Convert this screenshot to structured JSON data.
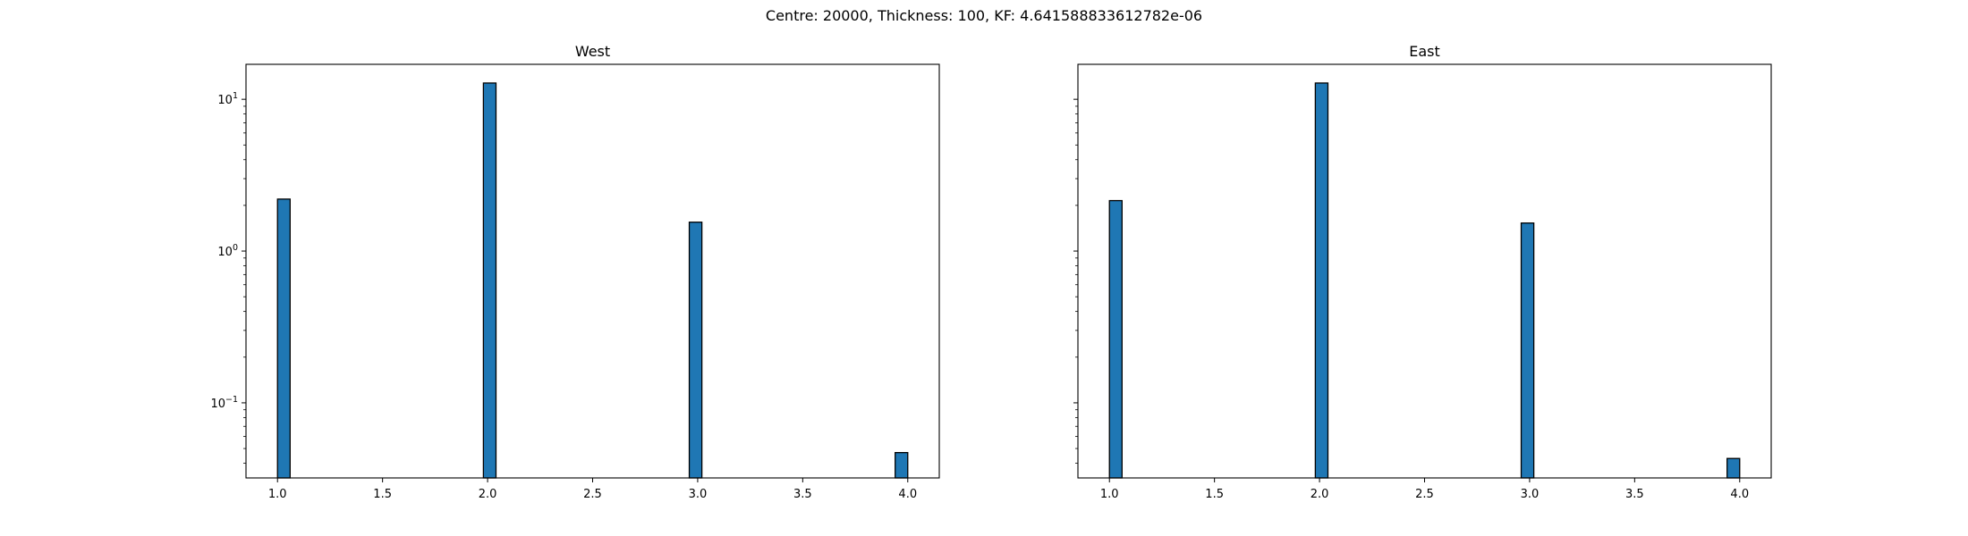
{
  "figure": {
    "suptitle": "Centre: 20000, Thickness: 100, KF: 4.641588833612782e-06"
  },
  "chart_data": [
    {
      "type": "bar",
      "title": "West",
      "xlabel": "",
      "ylabel": "",
      "yscale": "log",
      "xlim": [
        0.85,
        4.15
      ],
      "ylim": [
        0.032,
        17
      ],
      "bar_width": 0.06,
      "x_ticks": [
        1.0,
        1.5,
        2.0,
        2.5,
        3.0,
        3.5,
        4.0
      ],
      "x_tick_labels": [
        "1.0",
        "1.5",
        "2.0",
        "2.5",
        "3.0",
        "3.5",
        "4.0"
      ],
      "y_ticks": [
        0.1,
        1,
        10
      ],
      "y_tick_labels": [
        "10",
        "10",
        "10"
      ],
      "y_tick_exponents": [
        "−1",
        "0",
        "1"
      ],
      "color": "#1f77b4",
      "edge_color": "#000000",
      "bars": [
        {
          "x": 1.03,
          "value": 2.2
        },
        {
          "x": 2.01,
          "value": 12.8
        },
        {
          "x": 2.99,
          "value": 1.55
        },
        {
          "x": 3.97,
          "value": 0.047
        }
      ],
      "grid": false
    },
    {
      "type": "bar",
      "title": "East",
      "xlabel": "",
      "ylabel": "",
      "yscale": "log",
      "xlim": [
        0.85,
        4.15
      ],
      "ylim": [
        0.032,
        17
      ],
      "bar_width": 0.06,
      "x_ticks": [
        1.0,
        1.5,
        2.0,
        2.5,
        3.0,
        3.5,
        4.0
      ],
      "x_tick_labels": [
        "1.0",
        "1.5",
        "2.0",
        "2.5",
        "3.0",
        "3.5",
        "4.0"
      ],
      "y_ticks": [
        0.1,
        1,
        10
      ],
      "y_tick_labels": [
        "",
        "",
        ""
      ],
      "y_tick_exponents": [
        "",
        "",
        ""
      ],
      "color": "#1f77b4",
      "edge_color": "#000000",
      "bars": [
        {
          "x": 1.03,
          "value": 2.15
        },
        {
          "x": 2.01,
          "value": 12.8
        },
        {
          "x": 2.99,
          "value": 1.53
        },
        {
          "x": 3.97,
          "value": 0.043
        }
      ],
      "grid": false
    }
  ]
}
